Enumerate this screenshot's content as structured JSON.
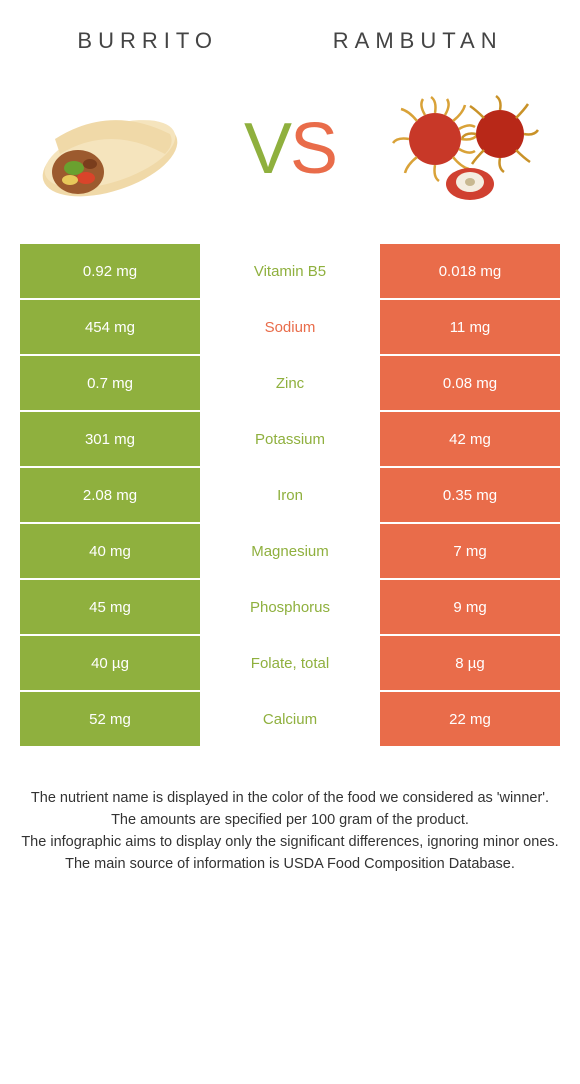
{
  "header": {
    "left_title": "Burrito",
    "right_title": "Rambutan"
  },
  "vs": {
    "v": "V",
    "s": "S"
  },
  "colors": {
    "burrito": "#8fb03e",
    "rambutan": "#e96c4a",
    "mid_text_burrito": "#8fb03e",
    "mid_text_rambutan": "#e96c4a"
  },
  "rows": [
    {
      "left": "0.92 mg",
      "mid": "Vitamin B5",
      "right": "0.018 mg",
      "winner": "burrito"
    },
    {
      "left": "454 mg",
      "mid": "Sodium",
      "right": "11 mg",
      "winner": "rambutan"
    },
    {
      "left": "0.7 mg",
      "mid": "Zinc",
      "right": "0.08 mg",
      "winner": "burrito"
    },
    {
      "left": "301 mg",
      "mid": "Potassium",
      "right": "42 mg",
      "winner": "burrito"
    },
    {
      "left": "2.08 mg",
      "mid": "Iron",
      "right": "0.35 mg",
      "winner": "burrito"
    },
    {
      "left": "40 mg",
      "mid": "Magnesium",
      "right": "7 mg",
      "winner": "burrito"
    },
    {
      "left": "45 mg",
      "mid": "Phosphorus",
      "right": "9 mg",
      "winner": "burrito"
    },
    {
      "left": "40 µg",
      "mid": "Folate, total",
      "right": "8 µg",
      "winner": "burrito"
    },
    {
      "left": "52 mg",
      "mid": "Calcium",
      "right": "22 mg",
      "winner": "burrito"
    }
  ],
  "footer": {
    "line1": "The nutrient name is displayed in the color of the food we considered as 'winner'.",
    "line2": "The amounts are specified per 100 gram of the product.",
    "line3": "The infographic aims to display only the significant differences, ignoring minor ones.",
    "line4": "The main source of information is USDA Food Composition Database."
  }
}
